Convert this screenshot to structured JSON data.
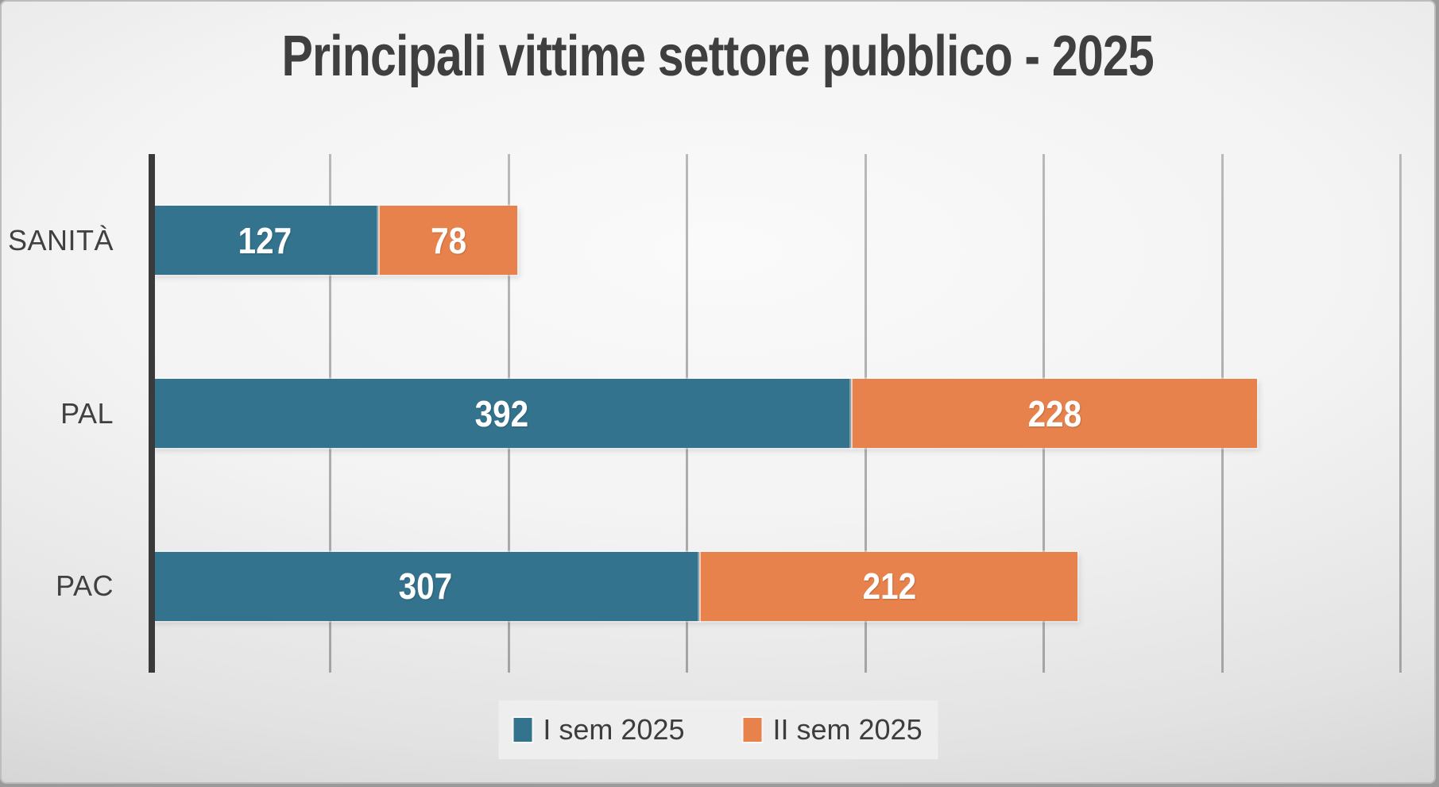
{
  "title": "Principali vittime settore pubblico - 2025",
  "chart_data": {
    "type": "bar",
    "orientation": "horizontal",
    "stacked": true,
    "title": "Principali vittime settore pubblico - 2025",
    "categories": [
      "SANITÀ",
      "PAL",
      "PAC"
    ],
    "series": [
      {
        "name": "I sem 2025",
        "color": "#33738e",
        "values": [
          127,
          392,
          307
        ]
      },
      {
        "name": "II sem 2025",
        "color": "#e8824c",
        "values": [
          78,
          228,
          212
        ]
      }
    ],
    "totals": [
      205,
      620,
      519
    ],
    "xlabel": "",
    "ylabel": "",
    "xlim": [
      0,
      700
    ],
    "gridline_interval": 100,
    "grid": "vertical-only",
    "tick_labels_shown": false,
    "data_labels": "white, centered inside segments",
    "legend_position": "bottom-center"
  },
  "legend": {
    "items": [
      {
        "label": "I sem 2025",
        "color": "#33738e"
      },
      {
        "label": "II sem 2025",
        "color": "#e8824c"
      }
    ]
  },
  "colors": {
    "series1": "#33738e",
    "series2": "#e8824c",
    "axis_line": "#3a3a3a",
    "gridline": "#ababab",
    "text": "#404040",
    "value_label": "#ffffff",
    "background_center": "#f8f8f8",
    "background_edge": "#c4c4c4",
    "legend_background": "#efefef"
  }
}
